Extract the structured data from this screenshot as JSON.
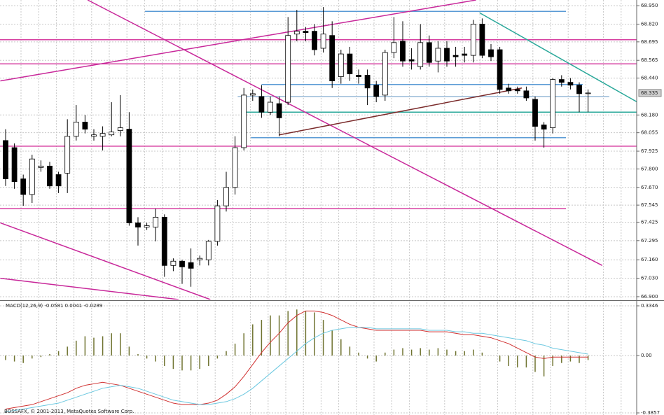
{
  "chart_data": [
    {
      "type": "candlestick",
      "ylim": [
        66.88,
        68.99
      ],
      "yticks": [
        {
          "value": 68.95,
          "label": "68.950"
        },
        {
          "value": 68.82,
          "label": "68.820"
        },
        {
          "value": 68.695,
          "label": "68.695"
        },
        {
          "value": 68.565,
          "label": "68.565"
        },
        {
          "value": 68.44,
          "label": "68.440"
        },
        {
          "value": 68.18,
          "label": "68.180"
        },
        {
          "value": 68.055,
          "label": "68.055"
        },
        {
          "value": 67.925,
          "label": "67.925"
        },
        {
          "value": 67.8,
          "label": "67.800"
        },
        {
          "value": 67.67,
          "label": "67.670"
        },
        {
          "value": 67.545,
          "label": "67.545"
        },
        {
          "value": 67.425,
          "label": "67.425"
        },
        {
          "value": 67.295,
          "label": "67.295"
        },
        {
          "value": 67.16,
          "label": "67.160"
        },
        {
          "value": 67.03,
          "label": "67.030"
        },
        {
          "value": 66.9,
          "label": "66.900"
        }
      ],
      "last_price": {
        "value": 68.335,
        "label": "68.335"
      },
      "grid": true,
      "up_color": "#ffffff",
      "down_color": "#000000",
      "open": [
        68.0,
        67.95,
        67.73,
        67.62,
        67.81,
        67.82,
        67.76,
        67.77,
        68.03,
        68.13,
        68.03,
        68.03,
        68.04,
        68.07,
        68.08,
        67.42,
        67.39,
        67.39,
        67.46,
        67.12,
        67.15,
        67.14,
        67.16,
        67.16,
        67.29,
        67.54,
        67.67,
        67.95,
        68.32,
        68.31,
        68.2,
        68.26,
        68.27,
        68.75,
        68.77,
        68.77,
        68.65,
        68.74,
        68.45,
        68.61,
        68.46,
        68.46,
        68.39,
        68.32,
        68.62,
        68.7,
        68.57,
        68.52,
        68.69,
        68.56,
        68.65,
        68.6,
        68.61,
        68.6,
        68.82,
        68.64,
        68.64,
        68.37,
        68.36,
        68.35,
        68.29,
        68.11,
        68.09,
        68.43,
        68.41,
        68.39,
        68.33
      ],
      "high": [
        68.08,
        67.98,
        67.76,
        67.9,
        67.86,
        67.85,
        67.78,
        68.15,
        68.25,
        68.18,
        68.08,
        68.1,
        68.27,
        68.32,
        68.2,
        67.46,
        67.42,
        67.52,
        67.48,
        67.17,
        67.16,
        67.24,
        67.19,
        67.3,
        67.58,
        67.78,
        68.03,
        68.37,
        68.36,
        68.39,
        68.31,
        68.31,
        68.87,
        68.92,
        68.8,
        68.82,
        68.94,
        68.84,
        68.64,
        68.66,
        68.5,
        68.5,
        68.42,
        68.64,
        68.87,
        68.84,
        68.65,
        68.82,
        68.74,
        68.7,
        68.7,
        68.66,
        68.66,
        68.85,
        68.86,
        68.68,
        68.66,
        68.4,
        68.38,
        68.38,
        68.31,
        68.13,
        68.44,
        68.46,
        68.44,
        68.41,
        68.36
      ],
      "low": [
        67.68,
        67.66,
        67.54,
        67.56,
        67.78,
        67.66,
        67.63,
        67.63,
        68.0,
        68.05,
        68.0,
        67.93,
        68.03,
        68.03,
        67.4,
        67.26,
        67.37,
        67.29,
        67.04,
        67.08,
        66.99,
        66.97,
        67.12,
        67.12,
        67.26,
        67.5,
        67.62,
        67.93,
        68.28,
        68.16,
        68.18,
        68.03,
        68.25,
        68.7,
        68.7,
        68.6,
        68.62,
        68.37,
        68.4,
        68.42,
        68.4,
        68.25,
        68.27,
        68.28,
        68.58,
        68.52,
        68.5,
        68.5,
        68.52,
        68.48,
        68.52,
        68.52,
        68.55,
        68.55,
        68.58,
        68.56,
        68.33,
        68.33,
        68.33,
        68.28,
        68.0,
        67.95,
        68.05,
        68.38,
        68.36,
        68.2,
        68.2
      ],
      "close": [
        67.73,
        67.71,
        67.62,
        67.87,
        67.82,
        67.68,
        67.68,
        68.03,
        68.13,
        68.08,
        68.04,
        68.05,
        68.06,
        68.09,
        67.42,
        67.39,
        67.4,
        67.46,
        67.12,
        67.15,
        67.11,
        67.1,
        67.17,
        67.29,
        67.54,
        67.67,
        67.95,
        68.32,
        68.33,
        68.2,
        68.27,
        68.16,
        68.74,
        68.77,
        68.76,
        68.64,
        68.75,
        68.42,
        68.61,
        68.47,
        68.45,
        68.37,
        68.31,
        68.62,
        68.69,
        68.56,
        68.56,
        68.69,
        68.55,
        68.65,
        68.56,
        68.59,
        68.6,
        68.82,
        68.6,
        68.59,
        68.36,
        68.35,
        68.35,
        68.3,
        68.1,
        68.08,
        68.43,
        68.41,
        68.39,
        68.33,
        68.335
      ],
      "levels": [
        {
          "value": 68.91,
          "color": "#5b9bd5",
          "from": 15.8,
          "to": 63.5
        },
        {
          "value": 68.71,
          "color": "#d63fa0",
          "from": -1,
          "to": 72
        },
        {
          "value": 68.54,
          "color": "#d63fa0",
          "from": -1,
          "to": 72
        },
        {
          "value": 68.395,
          "color": "#5b9bd5",
          "from": 29,
          "to": 65.4
        },
        {
          "value": 68.31,
          "color": "#9bbbd8",
          "from": 26.3,
          "to": 68.4
        },
        {
          "value": 68.2,
          "color": "#2aa89a",
          "from": 26.7,
          "to": 72
        },
        {
          "value": 68.02,
          "color": "#5b9bd5",
          "from": 27.8,
          "to": 63.5
        },
        {
          "value": 67.96,
          "color": "#d63fa0",
          "from": -1,
          "to": 72
        },
        {
          "value": 67.52,
          "color": "#d63fa0",
          "from": -1,
          "to": 63.5
        }
      ],
      "trendlines": [
        {
          "x": [
            9.3,
            67.6
          ],
          "y": [
            68.99,
            67.12
          ],
          "color": "#c8289a"
        },
        {
          "x": [
            -0.6,
            53.3
          ],
          "y": [
            68.42,
            68.99
          ],
          "color": "#c8289a"
        },
        {
          "x": [
            -0.6,
            23.2
          ],
          "y": [
            67.42,
            66.88
          ],
          "color": "#c8289a"
        },
        {
          "x": [
            -0.6,
            19.6
          ],
          "y": [
            67.03,
            66.88
          ],
          "color": "#c8289a"
        },
        {
          "x": [
            53.7,
            71.6
          ],
          "y": [
            68.9,
            68.27
          ],
          "color": "#2aa89a"
        },
        {
          "x": [
            31,
            58.5
          ],
          "y": [
            68.04,
            68.37
          ],
          "color": "#7a2a2a"
        }
      ]
    },
    {
      "type": "macd",
      "title": "MACD(12,26,9) -0.0581 0.0041 -0.0289",
      "ylim": [
        -0.3857,
        0.3346
      ],
      "yticks": [
        0.3346,
        {
          "value": 0,
          "label": "0.00"
        },
        -0.3857
      ],
      "series": [
        {
          "style": "histogram",
          "color": "#6f7330",
          "values": [
            -0.03,
            -0.04,
            -0.05,
            -0.02,
            -0.01,
            0.01,
            0.03,
            0.06,
            0.1,
            0.13,
            0.12,
            0.13,
            0.15,
            0.15,
            0.06,
            0.01,
            -0.02,
            -0.04,
            -0.07,
            -0.09,
            -0.1,
            -0.1,
            -0.09,
            -0.07,
            -0.02,
            0.03,
            0.08,
            0.15,
            0.21,
            0.24,
            0.27,
            0.27,
            0.3,
            0.31,
            0.3,
            0.29,
            0.24,
            0.17,
            0.11,
            0.06,
            0.02,
            -0.02,
            -0.04,
            0.02,
            0.04,
            0.05,
            0.04,
            0.05,
            0.04,
            0.05,
            0.04,
            0.03,
            0.03,
            0.04,
            0.02,
            0.0,
            -0.04,
            -0.07,
            -0.08,
            -0.08,
            -0.11,
            -0.14,
            -0.07,
            -0.05,
            -0.04,
            -0.05,
            -0.03
          ]
        },
        {
          "style": "line",
          "color": "#d03030",
          "values": [
            -0.36,
            -0.35,
            -0.34,
            -0.33,
            -0.31,
            -0.29,
            -0.27,
            -0.25,
            -0.22,
            -0.2,
            -0.19,
            -0.18,
            -0.19,
            -0.2,
            -0.22,
            -0.24,
            -0.26,
            -0.28,
            -0.3,
            -0.32,
            -0.33,
            -0.33,
            -0.33,
            -0.32,
            -0.3,
            -0.26,
            -0.21,
            -0.14,
            -0.06,
            0.02,
            0.09,
            0.15,
            0.22,
            0.27,
            0.3,
            0.3,
            0.29,
            0.27,
            0.24,
            0.21,
            0.19,
            0.18,
            0.17,
            0.17,
            0.17,
            0.17,
            0.17,
            0.17,
            0.16,
            0.16,
            0.16,
            0.15,
            0.14,
            0.14,
            0.13,
            0.12,
            0.1,
            0.08,
            0.05,
            0.02,
            -0.01,
            -0.02,
            -0.01,
            -0.01,
            -0.01,
            -0.01,
            -0.01
          ]
        },
        {
          "style": "line",
          "color": "#6cc8e0",
          "values": [
            -0.38,
            -0.37,
            -0.36,
            -0.35,
            -0.34,
            -0.33,
            -0.32,
            -0.3,
            -0.28,
            -0.26,
            -0.24,
            -0.22,
            -0.21,
            -0.2,
            -0.21,
            -0.22,
            -0.24,
            -0.26,
            -0.28,
            -0.3,
            -0.31,
            -0.32,
            -0.33,
            -0.33,
            -0.32,
            -0.31,
            -0.29,
            -0.26,
            -0.22,
            -0.17,
            -0.12,
            -0.07,
            -0.02,
            0.03,
            0.08,
            0.12,
            0.15,
            0.17,
            0.18,
            0.19,
            0.19,
            0.19,
            0.18,
            0.18,
            0.18,
            0.18,
            0.18,
            0.18,
            0.17,
            0.17,
            0.17,
            0.16,
            0.16,
            0.15,
            0.15,
            0.14,
            0.13,
            0.12,
            0.11,
            0.1,
            0.08,
            0.07,
            0.05,
            0.04,
            0.03,
            0.02,
            0.01
          ]
        }
      ]
    }
  ],
  "footer": "BOSSAFX, © 2001-2013, MetaQuotes Software Corp."
}
